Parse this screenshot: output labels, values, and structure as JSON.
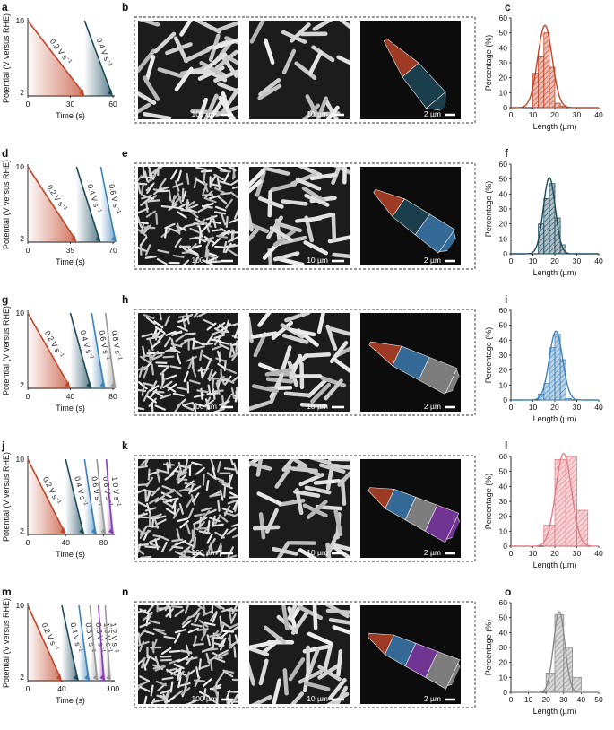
{
  "colors": {
    "c1": "#c0462a",
    "c2": "#1e4b5c",
    "c3": "#3e82b8",
    "c4": "#9a9a9a",
    "c5": "#8a3fb5",
    "hist_a": "#c0462a",
    "hist_b": "#1e4b5c",
    "hist_c": "#3e82b8",
    "hist_d": "#e17f87",
    "hist_e": "#8c8c8c"
  },
  "rows": [
    {
      "letters": {
        "pot": "a",
        "sem": "b",
        "hist": "c"
      },
      "potential": {
        "ylabel": "Potential (V versus RHE)",
        "xlabel": "Time (s)",
        "yticks": [
          "10",
          "2"
        ],
        "xticks": [
          "0",
          "30",
          "60"
        ],
        "xmax": 60,
        "sweeps": [
          {
            "label": "0.2 V s",
            "sup": "−1",
            "start": 0,
            "end": 40,
            "color": "c1"
          },
          {
            "label": "0.4 V s",
            "sup": "−1",
            "start": 40,
            "end": 60,
            "color": "c2"
          }
        ]
      },
      "sem": {
        "scales": [
          "100 µm",
          "10 µm",
          "2 µm"
        ],
        "segments": [
          "c1",
          "c2"
        ]
      },
      "chart_data": {
        "type": "bar",
        "title": "",
        "xlabel": "Length (µm)",
        "ylabel": "Percentage (%)",
        "xlim": [
          0,
          40
        ],
        "ylim": [
          0,
          60
        ],
        "xticks": [
          0,
          10,
          20,
          30,
          40
        ],
        "yticks": [
          0,
          10,
          20,
          30,
          40,
          50,
          60
        ],
        "bin_width": 2.5,
        "bin_starts": [
          10,
          12.5,
          15,
          17.5,
          20,
          22.5
        ],
        "values": [
          23,
          34,
          50,
          27,
          3,
          1
        ],
        "fit_mean": 15.5,
        "fit_peak": 55,
        "fit_sigma": 3.3,
        "color": "hist_a"
      }
    },
    {
      "letters": {
        "pot": "d",
        "sem": "e",
        "hist": "f"
      },
      "potential": {
        "ylabel": "Potential (V versus RHE)",
        "xlabel": "Time (s)",
        "yticks": [
          "10",
          "2"
        ],
        "xticks": [
          "0",
          "35",
          "70"
        ],
        "xmax": 70,
        "sweeps": [
          {
            "label": "0.2 V s",
            "sup": "−1",
            "start": 0,
            "end": 40,
            "color": "c1"
          },
          {
            "label": "0.4 V s",
            "sup": "−1",
            "start": 40,
            "end": 60,
            "color": "c2"
          },
          {
            "label": "0.6 V s",
            "sup": "−1",
            "start": 60,
            "end": 73,
            "color": "c3"
          }
        ]
      },
      "sem": {
        "scales": [
          "100 µm",
          "10 µm",
          "2 µm"
        ],
        "segments": [
          "c1",
          "c2",
          "c3"
        ]
      },
      "chart_data": {
        "type": "bar",
        "title": "",
        "xlabel": "Length (µm)",
        "ylabel": "Percentage (%)",
        "xlim": [
          0,
          40
        ],
        "ylim": [
          0,
          60
        ],
        "xticks": [
          0,
          10,
          20,
          30,
          40
        ],
        "yticks": [
          0,
          10,
          20,
          30,
          40,
          50,
          60
        ],
        "bin_width": 2.5,
        "bin_starts": [
          12.5,
          15,
          17.5,
          20,
          22.5
        ],
        "values": [
          20,
          37,
          47,
          24,
          6
        ],
        "fit_mean": 17.5,
        "fit_peak": 51,
        "fit_sigma": 2.7,
        "color": "hist_b"
      }
    },
    {
      "letters": {
        "pot": "g",
        "sem": "h",
        "hist": "i"
      },
      "potential": {
        "ylabel": "Potential (V versus RHE)",
        "xlabel": "Time (s)",
        "yticks": [
          "10",
          "2"
        ],
        "xticks": [
          "0",
          "40",
          "80"
        ],
        "xmax": 80,
        "sweeps": [
          {
            "label": "0.2 V s",
            "sup": "−1",
            "start": 0,
            "end": 40,
            "color": "c1"
          },
          {
            "label": "0.4 V s",
            "sup": "−1",
            "start": 40,
            "end": 60,
            "color": "c2"
          },
          {
            "label": "0.6 V s",
            "sup": "−1",
            "start": 60,
            "end": 73,
            "color": "c3"
          },
          {
            "label": "0.8 V s",
            "sup": "−1",
            "start": 73,
            "end": 83,
            "color": "c4"
          }
        ]
      },
      "sem": {
        "scales": [
          "100 µm",
          "10 µm",
          "2 µm"
        ],
        "segments": [
          "c1",
          "c3",
          "c4"
        ]
      },
      "chart_data": {
        "type": "bar",
        "title": "",
        "xlabel": "Length (µm)",
        "ylabel": "Percentage (%)",
        "xlim": [
          0,
          40
        ],
        "ylim": [
          0,
          60
        ],
        "xticks": [
          0,
          10,
          20,
          30,
          40
        ],
        "yticks": [
          0,
          10,
          20,
          30,
          40,
          50,
          60
        ],
        "bin_width": 2.5,
        "bin_starts": [
          12.5,
          15,
          17.5,
          20,
          22.5,
          25
        ],
        "values": [
          4,
          11,
          35,
          44,
          27,
          1
        ],
        "fit_mean": 20.5,
        "fit_peak": 46,
        "fit_sigma": 3,
        "color": "hist_c"
      }
    },
    {
      "letters": {
        "pot": "j",
        "sem": "k",
        "hist": "l"
      },
      "potential": {
        "ylabel": "Potential (V versus RHE)",
        "xlabel": "Time (s)",
        "yticks": [
          "10",
          "2"
        ],
        "xticks": [
          "0",
          "40",
          "80"
        ],
        "xmax": 90,
        "sweeps": [
          {
            "label": "0.2 V s",
            "sup": "−1",
            "start": 0,
            "end": 40,
            "color": "c1"
          },
          {
            "label": "0.4 V s",
            "sup": "−1",
            "start": 40,
            "end": 60,
            "color": "c2"
          },
          {
            "label": "0.6 V s",
            "sup": "−1",
            "start": 60,
            "end": 73,
            "color": "c3"
          },
          {
            "label": "0.8 V s",
            "sup": "−1",
            "start": 73,
            "end": 83,
            "color": "c4"
          },
          {
            "label": "1.0 V s",
            "sup": "−1",
            "start": 83,
            "end": 91,
            "color": "c5"
          }
        ]
      },
      "sem": {
        "scales": [
          "100 µm",
          "10 µm",
          "2 µm"
        ],
        "segments": [
          "c1",
          "c3",
          "c4",
          "c5"
        ]
      },
      "chart_data": {
        "type": "bar",
        "title": "",
        "xlabel": "Length (µm)",
        "ylabel": "Percentage (%)",
        "xlim": [
          0,
          40
        ],
        "ylim": [
          0,
          60
        ],
        "xticks": [
          0,
          10,
          20,
          30,
          40
        ],
        "yticks": [
          0,
          10,
          20,
          30,
          40,
          50,
          60
        ],
        "bin_width": 5,
        "bin_starts": [
          15,
          20,
          25,
          30
        ],
        "values": [
          14,
          58,
          60,
          24
        ],
        "fit_mean": 24,
        "fit_peak": 62,
        "fit_sigma": 3.6,
        "color": "hist_d"
      }
    },
    {
      "letters": {
        "pot": "m",
        "sem": "n",
        "hist": "o"
      },
      "potential": {
        "ylabel": "Potential (V versus RHE)",
        "xlabel": "Time (s)",
        "yticks": [
          "10",
          "2"
        ],
        "xticks": [
          "0",
          "40",
          "100"
        ],
        "xmax": 100,
        "sweeps": [
          {
            "label": "0.2 V s",
            "sup": "−1",
            "start": 0,
            "end": 40,
            "color": "c1"
          },
          {
            "label": "0.4 V s",
            "sup": "−1",
            "start": 40,
            "end": 60,
            "color": "c2"
          },
          {
            "label": "0.6 V s",
            "sup": "−1",
            "start": 60,
            "end": 73,
            "color": "c3"
          },
          {
            "label": "0.8 V s",
            "sup": "−1",
            "start": 73,
            "end": 83,
            "color": "c4"
          },
          {
            "label": "1.0 V s",
            "sup": "−1",
            "start": 83,
            "end": 91,
            "color": "c5"
          },
          {
            "label": "1.2 V s",
            "sup": "−1",
            "start": 91,
            "end": 98,
            "color": "c4"
          }
        ]
      },
      "sem": {
        "scales": [
          "100 µm",
          "10 µm",
          "2 µm"
        ],
        "segments": [
          "c1",
          "c3",
          "c5",
          "c4"
        ]
      },
      "chart_data": {
        "type": "bar",
        "title": "",
        "xlabel": "Length (µm)",
        "ylabel": "Percentage (%)",
        "xlim": [
          0,
          50
        ],
        "ylim": [
          0,
          60
        ],
        "xticks": [
          0,
          10,
          20,
          30,
          40,
          50
        ],
        "yticks": [
          0,
          10,
          20,
          30,
          40,
          50,
          60
        ],
        "bin_width": 5,
        "bin_starts": [
          20,
          25,
          30,
          35
        ],
        "values": [
          13,
          52,
          30,
          10
        ],
        "fit_mean": 27.5,
        "fit_peak": 54,
        "fit_sigma": 3.2,
        "color": "hist_e"
      }
    }
  ]
}
